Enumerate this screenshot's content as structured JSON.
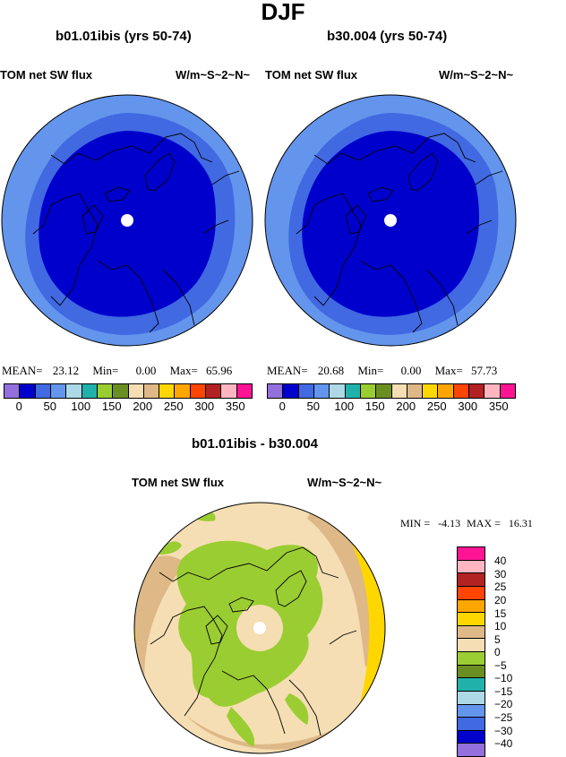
{
  "title": "DJF",
  "panels": [
    {
      "case": "b01.01ibis (yrs 50-74)",
      "variable": "TOM net SW flux",
      "units": "W/m~S~2~N~",
      "stats": {
        "mean_label": "MEAN=",
        "mean": "23.12",
        "min_label": "Min=",
        "min": "0.00",
        "max_label": "Max=",
        "max": "65.96"
      }
    },
    {
      "case": "b30.004 (yrs 50-74)",
      "variable": "TOM net SW flux",
      "units": "W/m~S~2~N~",
      "stats": {
        "mean_label": "MEAN=",
        "mean": "20.68",
        "min_label": "Min=",
        "min": "0.00",
        "max_label": "Max=",
        "max": "57.73"
      }
    }
  ],
  "diff": {
    "case": "b01.01ibis - b30.004",
    "variable": "TOM net SW flux",
    "units": "W/m~S~2~N~",
    "stats": {
      "min_label": "MIN =",
      "min": "-4.13",
      "max_label": "MAX =",
      "max": "16.31"
    }
  },
  "chart_data": [
    {
      "type": "polar-map",
      "fill_levels": [
        0,
        25,
        50
      ],
      "colorbar": {
        "orientation": "horizontal",
        "tick_labels": [
          "0",
          "50",
          "100",
          "150",
          "200",
          "250",
          "300",
          "350"
        ],
        "colors": [
          "#9370db",
          "#0000cd",
          "#4169e1",
          "#6495ed",
          "#add8e6",
          "#20b2aa",
          "#9acd32",
          "#6b8e23",
          "#f5deb3",
          "#deb887",
          "#ffd700",
          "#ffa500",
          "#ff4500",
          "#b22222",
          "#ffb6c1",
          "#ff1493"
        ]
      }
    },
    {
      "type": "polar-map",
      "fill_levels": [
        0,
        25,
        50
      ],
      "colorbar": {
        "orientation": "horizontal",
        "tick_labels": [
          "0",
          "50",
          "100",
          "150",
          "200",
          "250",
          "300",
          "350"
        ],
        "colors": [
          "#9370db",
          "#0000cd",
          "#4169e1",
          "#6495ed",
          "#add8e6",
          "#20b2aa",
          "#9acd32",
          "#6b8e23",
          "#f5deb3",
          "#deb887",
          "#ffd700",
          "#ffa500",
          "#ff4500",
          "#b22222",
          "#ffb6c1",
          "#ff1493"
        ]
      }
    },
    {
      "type": "polar-map",
      "fill_levels": [
        -5,
        0,
        5,
        10
      ],
      "colorbar": {
        "orientation": "vertical",
        "labels": [
          "40",
          "30",
          "25",
          "20",
          "15",
          "10",
          "5",
          "0",
          "−5",
          "−10",
          "−15",
          "−20",
          "−25",
          "−30",
          "−40"
        ],
        "colors": [
          "#ff1493",
          "#ffb6c1",
          "#b22222",
          "#ff4500",
          "#ffa500",
          "#ffd700",
          "#deb887",
          "#f5deb3",
          "#9acd32",
          "#6b8e23",
          "#20b2aa",
          "#add8e6",
          "#6495ed",
          "#4169e1",
          "#0000cd",
          "#9370db"
        ]
      }
    }
  ]
}
